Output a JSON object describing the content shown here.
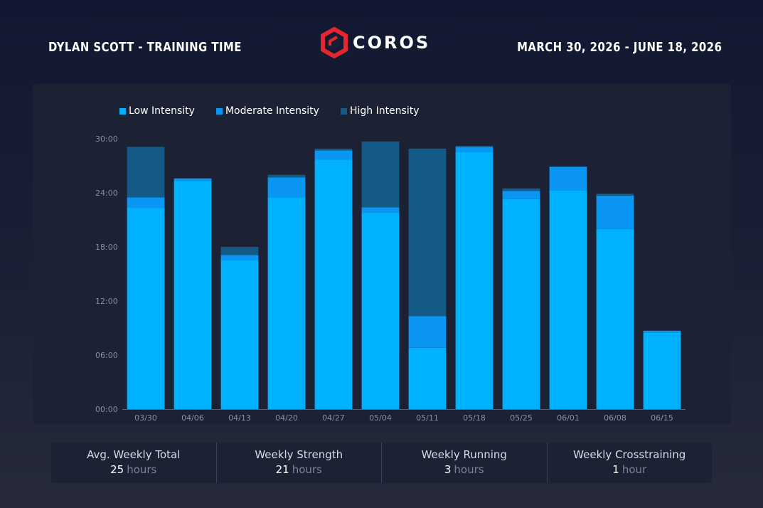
{
  "header": {
    "title": "DYLAN SCOTT - TRAINING TIME",
    "brand": "COROS",
    "date_range": "MARCH 30, 2026 - JUNE 18, 2026"
  },
  "colors": {
    "low": "#00b1ff",
    "moderate": "#0a96f2",
    "high": "#135a86",
    "brand_red": "#e6262f"
  },
  "legend": [
    {
      "name": "Low Intensity",
      "color": "#00b1ff"
    },
    {
      "name": "Moderate Intensity",
      "color": "#0a96f2"
    },
    {
      "name": "High Intensity",
      "color": "#135a86"
    }
  ],
  "chart_data": {
    "type": "bar",
    "stacked": true,
    "categories": [
      "03/30",
      "04/06",
      "04/13",
      "04/20",
      "04/27",
      "05/04",
      "05/11",
      "05/18",
      "05/25",
      "06/01",
      "06/08",
      "06/15"
    ],
    "series": [
      {
        "name": "Low Intensity",
        "values": [
          22.3,
          25.3,
          16.5,
          23.5,
          27.7,
          21.8,
          6.8,
          28.5,
          23.3,
          24.3,
          20.0,
          8.5
        ]
      },
      {
        "name": "Moderate Intensity",
        "values": [
          1.2,
          0.3,
          0.6,
          2.2,
          1.0,
          0.6,
          3.5,
          0.6,
          0.9,
          2.6,
          3.7,
          0.2
        ]
      },
      {
        "name": "High Intensity",
        "values": [
          5.6,
          0,
          0.9,
          0.3,
          0.2,
          7.3,
          18.6,
          0.1,
          0.3,
          0,
          0.2,
          0
        ]
      }
    ],
    "y_ticks": [
      "00:00",
      "06:00",
      "12:00",
      "18:00",
      "24:00",
      "30:00"
    ],
    "ylim": [
      0,
      30
    ],
    "legend_position": "top-left"
  },
  "stats": [
    {
      "label": "Avg. Weekly Total",
      "value": "25",
      "unit": "hours"
    },
    {
      "label": "Weekly Strength",
      "value": "21",
      "unit": "hours"
    },
    {
      "label": "Weekly Running",
      "value": "3",
      "unit": "hours"
    },
    {
      "label": "Weekly Crosstraining",
      "value": "1",
      "unit": "hour"
    }
  ]
}
